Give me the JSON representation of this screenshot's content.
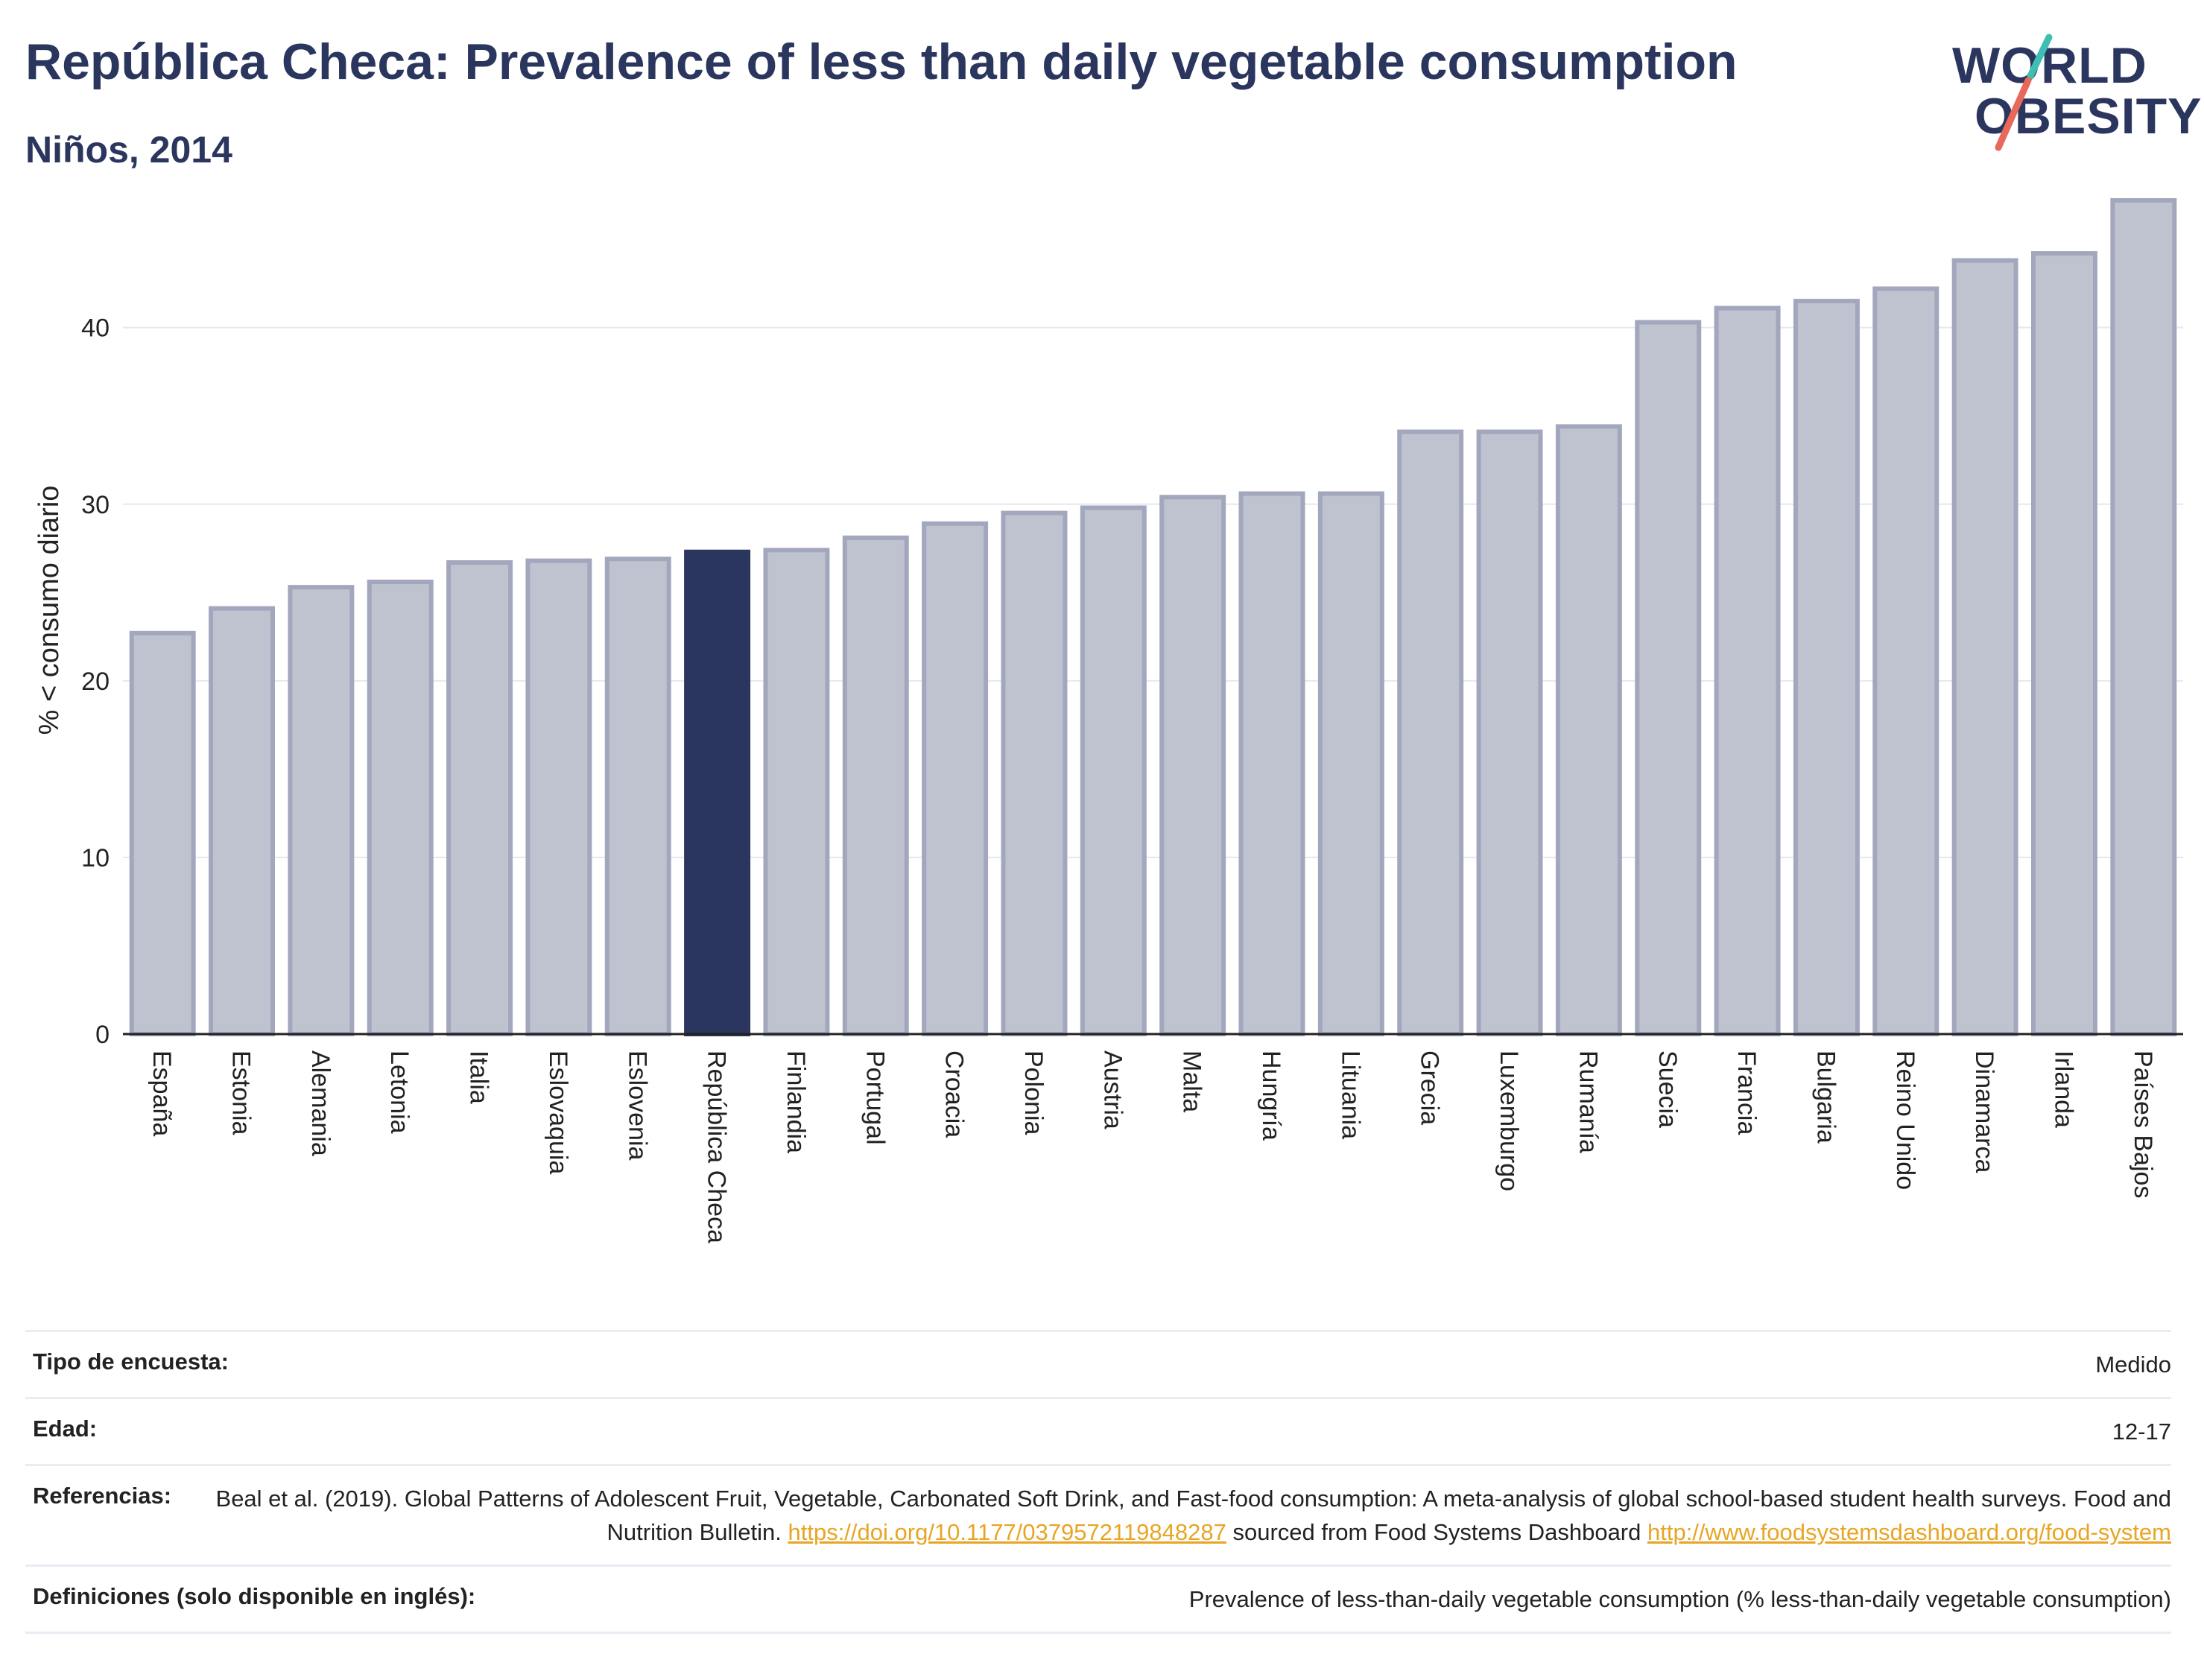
{
  "header": {
    "title": "República Checa: Prevalence of less than daily vegetable consumption",
    "subtitle": "Niños, 2014"
  },
  "logo": {
    "line1": "WORLD",
    "line2": "OBESITY",
    "accent_teal": "#3fbfb3",
    "accent_coral": "#e8685a"
  },
  "colors": {
    "bar_default": "#bfc2cf",
    "bar_border": "#a2a7bd",
    "bar_highlight": "#2b365e",
    "grid": "#e6e8ee",
    "title": "#2b365e",
    "link": "#e8a524"
  },
  "chart_data": {
    "type": "bar",
    "ylabel": "% < consumo diario",
    "ylim": [
      0,
      48
    ],
    "yticks": [
      0,
      10,
      20,
      30,
      40
    ],
    "highlight": "República Checa",
    "categories": [
      "España",
      "Estonia",
      "Alemania",
      "Letonia",
      "Italia",
      "Eslovaquia",
      "Eslovenia",
      "República Checa",
      "Finlandia",
      "Portugal",
      "Croacia",
      "Polonia",
      "Austria",
      "Malta",
      "Hungría",
      "Lituania",
      "Grecia",
      "Luxemburgo",
      "Rumanía",
      "Suecia",
      "Francia",
      "Bulgaria",
      "Reino Unido",
      "Dinamarca",
      "Irlanda",
      "Países Bajos"
    ],
    "values": [
      22.7,
      24.1,
      25.3,
      25.6,
      26.7,
      26.8,
      26.9,
      27.3,
      27.4,
      28.1,
      28.9,
      29.5,
      29.8,
      30.4,
      30.6,
      30.6,
      34.1,
      34.1,
      34.4,
      40.3,
      41.1,
      41.5,
      42.2,
      43.8,
      44.2,
      47.2
    ]
  },
  "info": {
    "survey_type_label": "Tipo de encuesta:",
    "survey_type_value": "Medido",
    "age_label": "Edad:",
    "age_value": "12-17",
    "references_label": "Referencias:",
    "references_text_1": "Beal et al. (2019). Global Patterns of Adolescent Fruit, Vegetable, Carbonated Soft Drink, and Fast-food consumption: A meta-analysis of global school-based student health surveys. Food and Nutrition Bulletin. ",
    "references_link_1": "https://doi.org/10.1177/0379572119848287",
    "references_text_2": " sourced from Food Systems Dashboard ",
    "references_link_2": "http://www.foodsystemsdashboard.org/food-system",
    "definitions_label": "Definiciones (solo disponible en inglés):",
    "definitions_value": "Prevalence of less-than-daily vegetable consumption (% less-than-daily vegetable consumption)"
  }
}
